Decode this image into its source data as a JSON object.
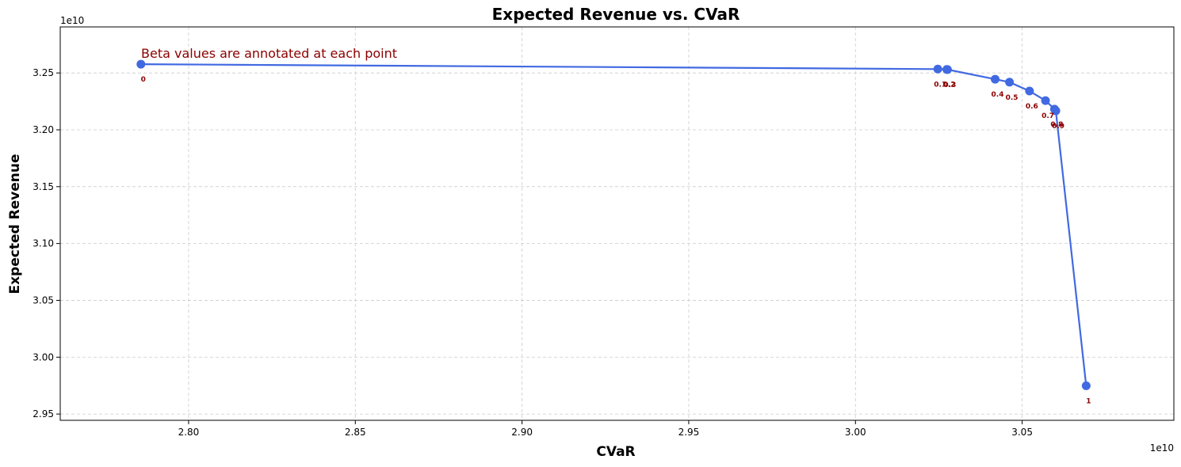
{
  "chart_data": {
    "type": "line",
    "title": "Expected Revenue vs. CVaR",
    "xlabel": "CVaR",
    "ylabel": "Expected Revenue",
    "x_exponent_label": "1e10",
    "y_exponent_label": "1e10",
    "xlim": [
      2.7615,
      3.0955
    ],
    "ylim": [
      2.9445,
      3.2905
    ],
    "x_ticks": [
      2.8,
      2.85,
      2.9,
      2.95,
      3.0,
      3.05
    ],
    "x_tick_labels": [
      "2.80",
      "2.85",
      "2.90",
      "2.95",
      "3.00",
      "3.05"
    ],
    "y_ticks": [
      2.95,
      3.0,
      3.05,
      3.1,
      3.15,
      3.2,
      3.25
    ],
    "y_tick_labels": [
      "2.95",
      "3.00",
      "3.05",
      "3.10",
      "3.15",
      "3.20",
      "3.25"
    ],
    "grid": true,
    "annotation_text": "Beta values are annotated at each point",
    "line_color": "#4169E1",
    "label_color": "#8B0000",
    "points": [
      {
        "beta": "0",
        "x": 2.7857,
        "y": 3.2577
      },
      {
        "beta": "0.1",
        "x": 3.0247,
        "y": 3.2534
      },
      {
        "beta": "0.2",
        "x": 3.0274,
        "y": 3.2531
      },
      {
        "beta": "0.3",
        "x": 3.0276,
        "y": 3.253
      },
      {
        "beta": "0.4",
        "x": 3.0419,
        "y": 3.2445
      },
      {
        "beta": "0.5",
        "x": 3.0462,
        "y": 3.2419
      },
      {
        "beta": "0.6",
        "x": 3.0522,
        "y": 3.2341
      },
      {
        "beta": "0.7",
        "x": 3.057,
        "y": 3.2257
      },
      {
        "beta": "0.8",
        "x": 3.0597,
        "y": 3.2182
      },
      {
        "beta": "0.9",
        "x": 3.0601,
        "y": 3.2167
      },
      {
        "beta": "1",
        "x": 3.0692,
        "y": 2.9749
      }
    ]
  }
}
